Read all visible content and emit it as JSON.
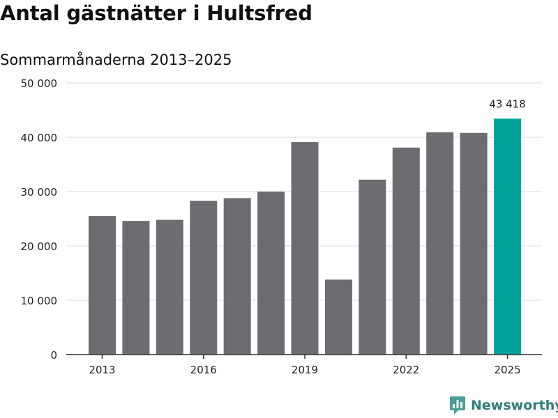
{
  "chart_data": {
    "type": "bar",
    "title": "Antal gästnätter i Hultsfred",
    "subtitle": "Sommarmånaderna 2013–2025",
    "categories": [
      "2013",
      "2014",
      "2015",
      "2016",
      "2017",
      "2018",
      "2019",
      "2020",
      "2021",
      "2022",
      "2023",
      "2024",
      "2025"
    ],
    "values": [
      25500,
      24600,
      24800,
      28300,
      28800,
      30000,
      39100,
      13800,
      32200,
      38100,
      40900,
      40800,
      43418
    ],
    "ylim": [
      0,
      50000
    ],
    "yticks": [
      0,
      10000,
      20000,
      30000,
      40000,
      50000
    ],
    "ytick_labels": [
      "0",
      "10 000",
      "20 000",
      "30 000",
      "40 000",
      "50 000"
    ],
    "xtick_labels": [
      "2013",
      "2016",
      "2019",
      "2022",
      "2025"
    ],
    "data_labels": [
      {
        "category": "2025",
        "text": "43 418"
      }
    ],
    "grid": true,
    "legend": "none",
    "colors": {
      "bar": "#6d6c71",
      "highlight": "#00a39a",
      "grid": "#dddddd",
      "axis": "#333333"
    }
  },
  "brand": {
    "name": "Newsworthy",
    "icon": "newsworthy-logo-icon",
    "color": "#2e7d7a"
  }
}
